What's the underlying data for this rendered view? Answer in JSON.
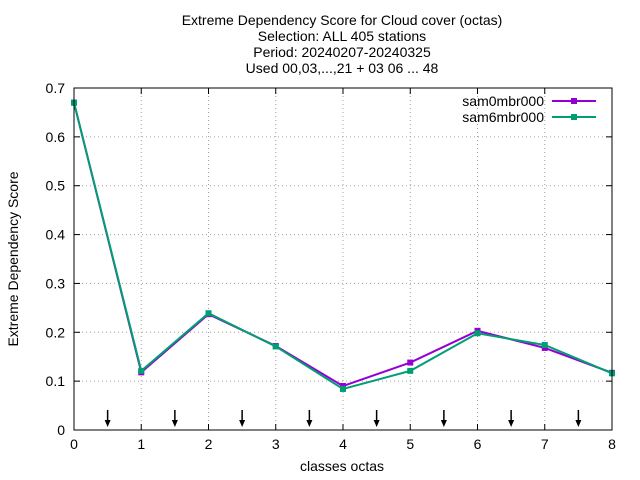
{
  "chart_data": {
    "type": "line",
    "title_lines": [
      "Extreme Dependency Score  for Cloud cover (octas)",
      "Selection: ALL    405 stations",
      "Period: 20240207-20240325",
      "Used 00,03,...,21 + 03 06 ... 48"
    ],
    "xlabel": "classes octas",
    "ylabel": "Extreme Dependency Score",
    "xlim": [
      0,
      8
    ],
    "ylim": [
      0,
      0.7
    ],
    "xticks": [
      0,
      1,
      2,
      3,
      4,
      5,
      6,
      7,
      8
    ],
    "yticks": [
      0,
      0.1,
      0.2,
      0.3,
      0.4,
      0.5,
      0.6,
      0.7
    ],
    "xtick_labels": [
      "0",
      "1",
      "2",
      "3",
      "4",
      "5",
      "6",
      "7",
      "8"
    ],
    "ytick_labels": [
      "0",
      "0.1",
      "0.2",
      "0.3",
      "0.4",
      "0.5",
      "0.6",
      "0.7"
    ],
    "grid": true,
    "legend_position": "top-right",
    "x": [
      0,
      1,
      2,
      3,
      4,
      5,
      6,
      7,
      8
    ],
    "series": [
      {
        "name": "sam0mbr000",
        "color": "#9400d3",
        "values": [
          0.67,
          0.118,
          0.237,
          0.172,
          0.09,
          0.138,
          0.203,
          0.168,
          0.117
        ]
      },
      {
        "name": "sam6mbr000",
        "color": "#009e73",
        "values": [
          0.67,
          0.121,
          0.239,
          0.171,
          0.084,
          0.121,
          0.198,
          0.174,
          0.116
        ]
      }
    ],
    "arrow_markers_x": [
      0.5,
      1.5,
      2.5,
      3.5,
      4.5,
      5.5,
      6.5,
      7.5
    ]
  }
}
